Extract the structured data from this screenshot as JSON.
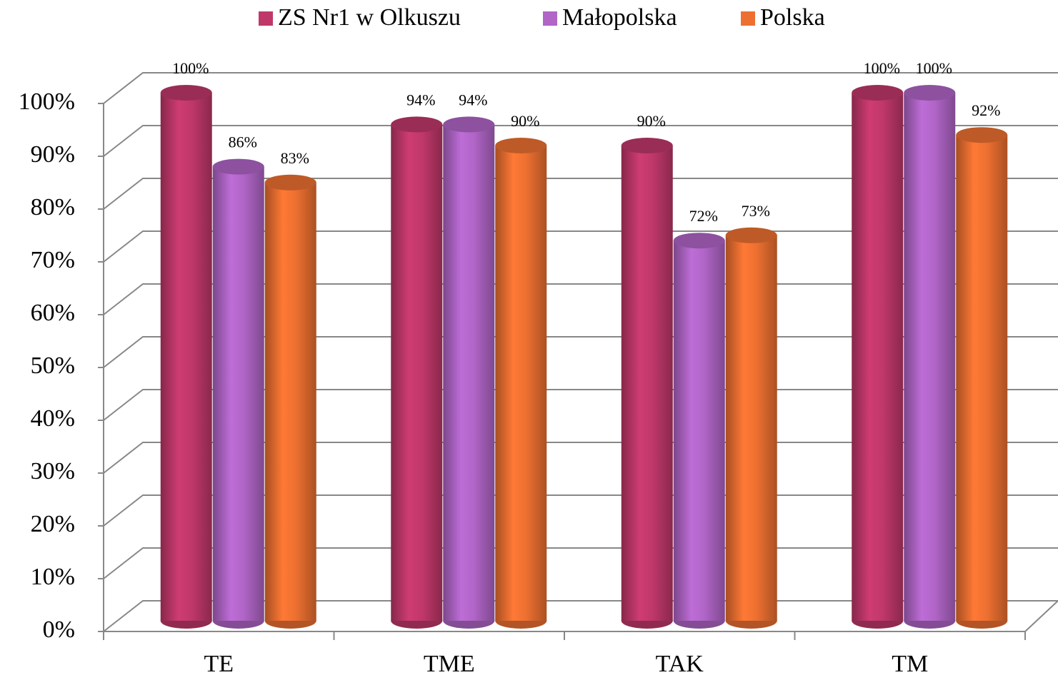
{
  "chart_data": {
    "type": "bar3d",
    "categories": [
      "TE",
      "TME",
      "TAK",
      "TM"
    ],
    "series": [
      {
        "name": "ZS Nr1 w Olkuszu",
        "color": "#c0386a",
        "values": [
          100,
          94,
          90,
          100
        ],
        "value_labels": [
          "100%",
          "94%",
          "90%",
          "100%"
        ]
      },
      {
        "name": "Małopolska",
        "color": "#b065c7",
        "values": [
          86,
          94,
          72,
          100
        ],
        "value_labels": [
          "86%",
          "94%",
          "72%",
          "100%"
        ]
      },
      {
        "name": "Polska",
        "color": "#ed7031",
        "values": [
          83,
          90,
          73,
          92
        ],
        "value_labels": [
          "83%",
          "90%",
          "73%",
          "92%"
        ]
      }
    ],
    "ylim": [
      0,
      100
    ],
    "yticks": [
      {
        "value": 0,
        "label": "0%"
      },
      {
        "value": 10,
        "label": "10%"
      },
      {
        "value": 20,
        "label": "20%"
      },
      {
        "value": 30,
        "label": "30%"
      },
      {
        "value": 40,
        "label": "40%"
      },
      {
        "value": 50,
        "label": "50%"
      },
      {
        "value": 60,
        "label": "60%"
      },
      {
        "value": 70,
        "label": "70%"
      },
      {
        "value": 80,
        "label": "80%"
      },
      {
        "value": 90,
        "label": "90%"
      },
      {
        "value": 100,
        "label": "100%"
      }
    ],
    "grid": true,
    "legend": "top"
  }
}
